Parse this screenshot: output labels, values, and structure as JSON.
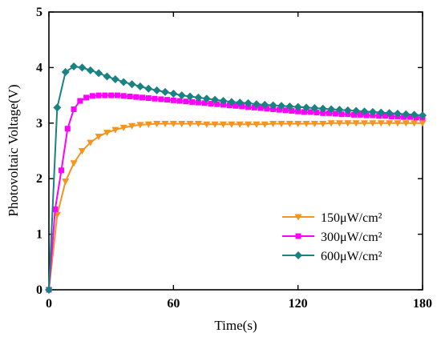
{
  "chart_data": {
    "type": "line",
    "xlabel": "Time(s)",
    "ylabel": "Photovoltaic Voltage(V)",
    "xlim": [
      0,
      180
    ],
    "ylim": [
      0,
      5
    ],
    "xticks": [
      0,
      60,
      120,
      180
    ],
    "yticks": [
      0,
      1,
      2,
      3,
      4,
      5
    ],
    "grid": false,
    "legend_position": "bottom-right",
    "series": [
      {
        "name": "150μW/cm²",
        "color": "#f7931e",
        "marker": "triangle-down",
        "x": [
          0,
          4,
          8,
          12,
          16,
          20,
          24,
          28,
          32,
          36,
          40,
          44,
          48,
          52,
          56,
          60,
          64,
          68,
          72,
          76,
          80,
          84,
          88,
          92,
          96,
          100,
          104,
          108,
          112,
          116,
          120,
          124,
          128,
          132,
          136,
          140,
          144,
          148,
          152,
          156,
          160,
          164,
          168,
          172,
          176,
          180
        ],
        "y": [
          0,
          1.35,
          1.95,
          2.28,
          2.5,
          2.65,
          2.76,
          2.83,
          2.88,
          2.92,
          2.95,
          2.97,
          2.98,
          2.99,
          2.99,
          2.99,
          2.99,
          2.99,
          2.99,
          2.98,
          2.98,
          2.98,
          2.98,
          2.98,
          2.98,
          2.98,
          2.98,
          2.99,
          2.99,
          2.99,
          2.99,
          2.99,
          2.99,
          2.99,
          3.0,
          3.0,
          3.0,
          3.0,
          3.0,
          3.0,
          3.0,
          3.0,
          3.0,
          3.0,
          3.0,
          3.0
        ]
      },
      {
        "name": "300μW/cm²",
        "color": "#ff00ff",
        "marker": "square",
        "x": [
          0,
          3,
          6,
          9,
          12,
          15,
          18,
          21,
          24,
          27,
          30,
          33,
          36,
          39,
          42,
          45,
          48,
          51,
          54,
          57,
          60,
          63,
          66,
          69,
          72,
          75,
          78,
          81,
          84,
          87,
          90,
          93,
          96,
          99,
          102,
          105,
          108,
          111,
          114,
          117,
          120,
          123,
          126,
          129,
          132,
          135,
          138,
          141,
          144,
          147,
          150,
          153,
          156,
          159,
          162,
          165,
          168,
          171,
          174,
          177,
          180
        ],
        "y": [
          0,
          1.45,
          2.15,
          2.9,
          3.25,
          3.4,
          3.46,
          3.49,
          3.5,
          3.5,
          3.5,
          3.5,
          3.49,
          3.48,
          3.47,
          3.46,
          3.45,
          3.44,
          3.43,
          3.42,
          3.41,
          3.4,
          3.39,
          3.38,
          3.37,
          3.36,
          3.35,
          3.34,
          3.33,
          3.32,
          3.31,
          3.3,
          3.29,
          3.28,
          3.27,
          3.26,
          3.25,
          3.24,
          3.23,
          3.22,
          3.21,
          3.2,
          3.2,
          3.19,
          3.18,
          3.18,
          3.17,
          3.16,
          3.16,
          3.15,
          3.15,
          3.14,
          3.14,
          3.13,
          3.13,
          3.12,
          3.12,
          3.11,
          3.11,
          3.1,
          3.1
        ]
      },
      {
        "name": "600μW/cm²",
        "color": "#1a8282",
        "marker": "diamond",
        "x": [
          0,
          4,
          8,
          12,
          16,
          20,
          24,
          28,
          32,
          36,
          40,
          44,
          48,
          52,
          56,
          60,
          64,
          68,
          72,
          76,
          80,
          84,
          88,
          92,
          96,
          100,
          104,
          108,
          112,
          116,
          120,
          124,
          128,
          132,
          136,
          140,
          144,
          148,
          152,
          156,
          160,
          164,
          168,
          172,
          176,
          180
        ],
        "y": [
          0,
          3.28,
          3.92,
          4.02,
          4.0,
          3.95,
          3.9,
          3.84,
          3.79,
          3.74,
          3.7,
          3.66,
          3.62,
          3.59,
          3.56,
          3.53,
          3.5,
          3.48,
          3.46,
          3.44,
          3.42,
          3.4,
          3.38,
          3.37,
          3.36,
          3.34,
          3.33,
          3.32,
          3.31,
          3.3,
          3.29,
          3.28,
          3.27,
          3.26,
          3.25,
          3.24,
          3.23,
          3.22,
          3.21,
          3.2,
          3.19,
          3.18,
          3.17,
          3.16,
          3.15,
          3.14
        ]
      }
    ]
  }
}
